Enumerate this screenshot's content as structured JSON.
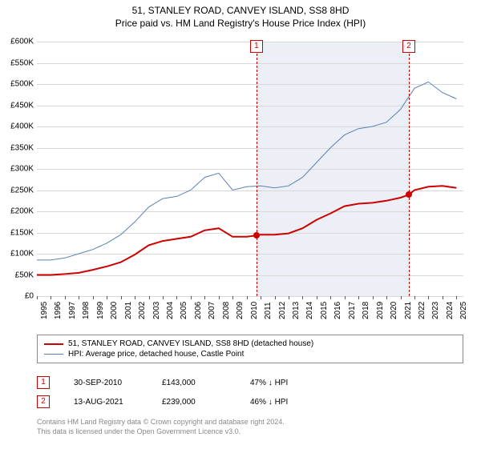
{
  "title": "51, STANLEY ROAD, CANVEY ISLAND, SS8 8HD",
  "subtitle": "Price paid vs. HM Land Registry's House Price Index (HPI)",
  "chart": {
    "type": "line",
    "x_range": [
      1995,
      2025.5
    ],
    "y_range": [
      0,
      600000
    ],
    "y_tick_step": 50000,
    "y_tick_prefix": "£",
    "y_tick_suffix": "K",
    "x_years": [
      1995,
      1996,
      1997,
      1998,
      1999,
      2000,
      2001,
      2002,
      2003,
      2004,
      2005,
      2006,
      2007,
      2008,
      2009,
      2010,
      2011,
      2012,
      2013,
      2014,
      2015,
      2016,
      2017,
      2018,
      2019,
      2020,
      2021,
      2022,
      2023,
      2024,
      2025
    ],
    "background_color": "#ffffff",
    "grid_color": "#d8d8d8",
    "highlight_band": {
      "start": 2010.7,
      "end": 2021.6,
      "color": "#dce4ee"
    },
    "series": [
      {
        "name": "price_paid",
        "label": "51, STANLEY ROAD, CANVEY ISLAND, SS8 8HD (detached house)",
        "color": "#cc0000",
        "line_width": 2,
        "points": [
          [
            1995,
            50000
          ],
          [
            1996,
            50000
          ],
          [
            1997,
            52000
          ],
          [
            1998,
            55000
          ],
          [
            1999,
            62000
          ],
          [
            2000,
            70000
          ],
          [
            2001,
            80000
          ],
          [
            2002,
            98000
          ],
          [
            2003,
            120000
          ],
          [
            2004,
            130000
          ],
          [
            2005,
            135000
          ],
          [
            2006,
            140000
          ],
          [
            2007,
            155000
          ],
          [
            2008,
            160000
          ],
          [
            2009,
            140000
          ],
          [
            2010,
            140000
          ],
          [
            2010.7,
            143000
          ],
          [
            2011,
            145000
          ],
          [
            2012,
            145000
          ],
          [
            2013,
            148000
          ],
          [
            2014,
            160000
          ],
          [
            2015,
            180000
          ],
          [
            2016,
            195000
          ],
          [
            2017,
            212000
          ],
          [
            2018,
            218000
          ],
          [
            2019,
            220000
          ],
          [
            2020,
            225000
          ],
          [
            2021,
            232000
          ],
          [
            2021.6,
            239000
          ],
          [
            2022,
            250000
          ],
          [
            2023,
            258000
          ],
          [
            2024,
            260000
          ],
          [
            2025,
            255000
          ]
        ]
      },
      {
        "name": "hpi",
        "label": "HPI: Average price, detached house, Castle Point",
        "color": "#5b7fb4",
        "line_width": 1,
        "points": [
          [
            1995,
            85000
          ],
          [
            1996,
            85000
          ],
          [
            1997,
            90000
          ],
          [
            1998,
            100000
          ],
          [
            1999,
            110000
          ],
          [
            2000,
            125000
          ],
          [
            2001,
            145000
          ],
          [
            2002,
            175000
          ],
          [
            2003,
            210000
          ],
          [
            2004,
            230000
          ],
          [
            2005,
            235000
          ],
          [
            2006,
            250000
          ],
          [
            2007,
            280000
          ],
          [
            2008,
            290000
          ],
          [
            2009,
            250000
          ],
          [
            2010,
            258000
          ],
          [
            2011,
            260000
          ],
          [
            2012,
            255000
          ],
          [
            2013,
            260000
          ],
          [
            2014,
            280000
          ],
          [
            2015,
            315000
          ],
          [
            2016,
            350000
          ],
          [
            2017,
            380000
          ],
          [
            2018,
            395000
          ],
          [
            2019,
            400000
          ],
          [
            2020,
            410000
          ],
          [
            2021,
            440000
          ],
          [
            2022,
            490000
          ],
          [
            2023,
            505000
          ],
          [
            2024,
            480000
          ],
          [
            2025,
            465000
          ]
        ]
      }
    ],
    "markers": [
      {
        "n": "1",
        "x": 2010.7,
        "y": 143000
      },
      {
        "n": "2",
        "x": 2021.6,
        "y": 239000
      }
    ]
  },
  "transactions": [
    {
      "n": "1",
      "date": "30-SEP-2010",
      "price": "£143,000",
      "delta": "47% ↓ HPI"
    },
    {
      "n": "2",
      "date": "13-AUG-2021",
      "price": "£239,000",
      "delta": "46% ↓ HPI"
    }
  ],
  "footer_line1": "Contains HM Land Registry data © Crown copyright and database right 2024.",
  "footer_line2": "This data is licensed under the Open Government Licence v3.0."
}
